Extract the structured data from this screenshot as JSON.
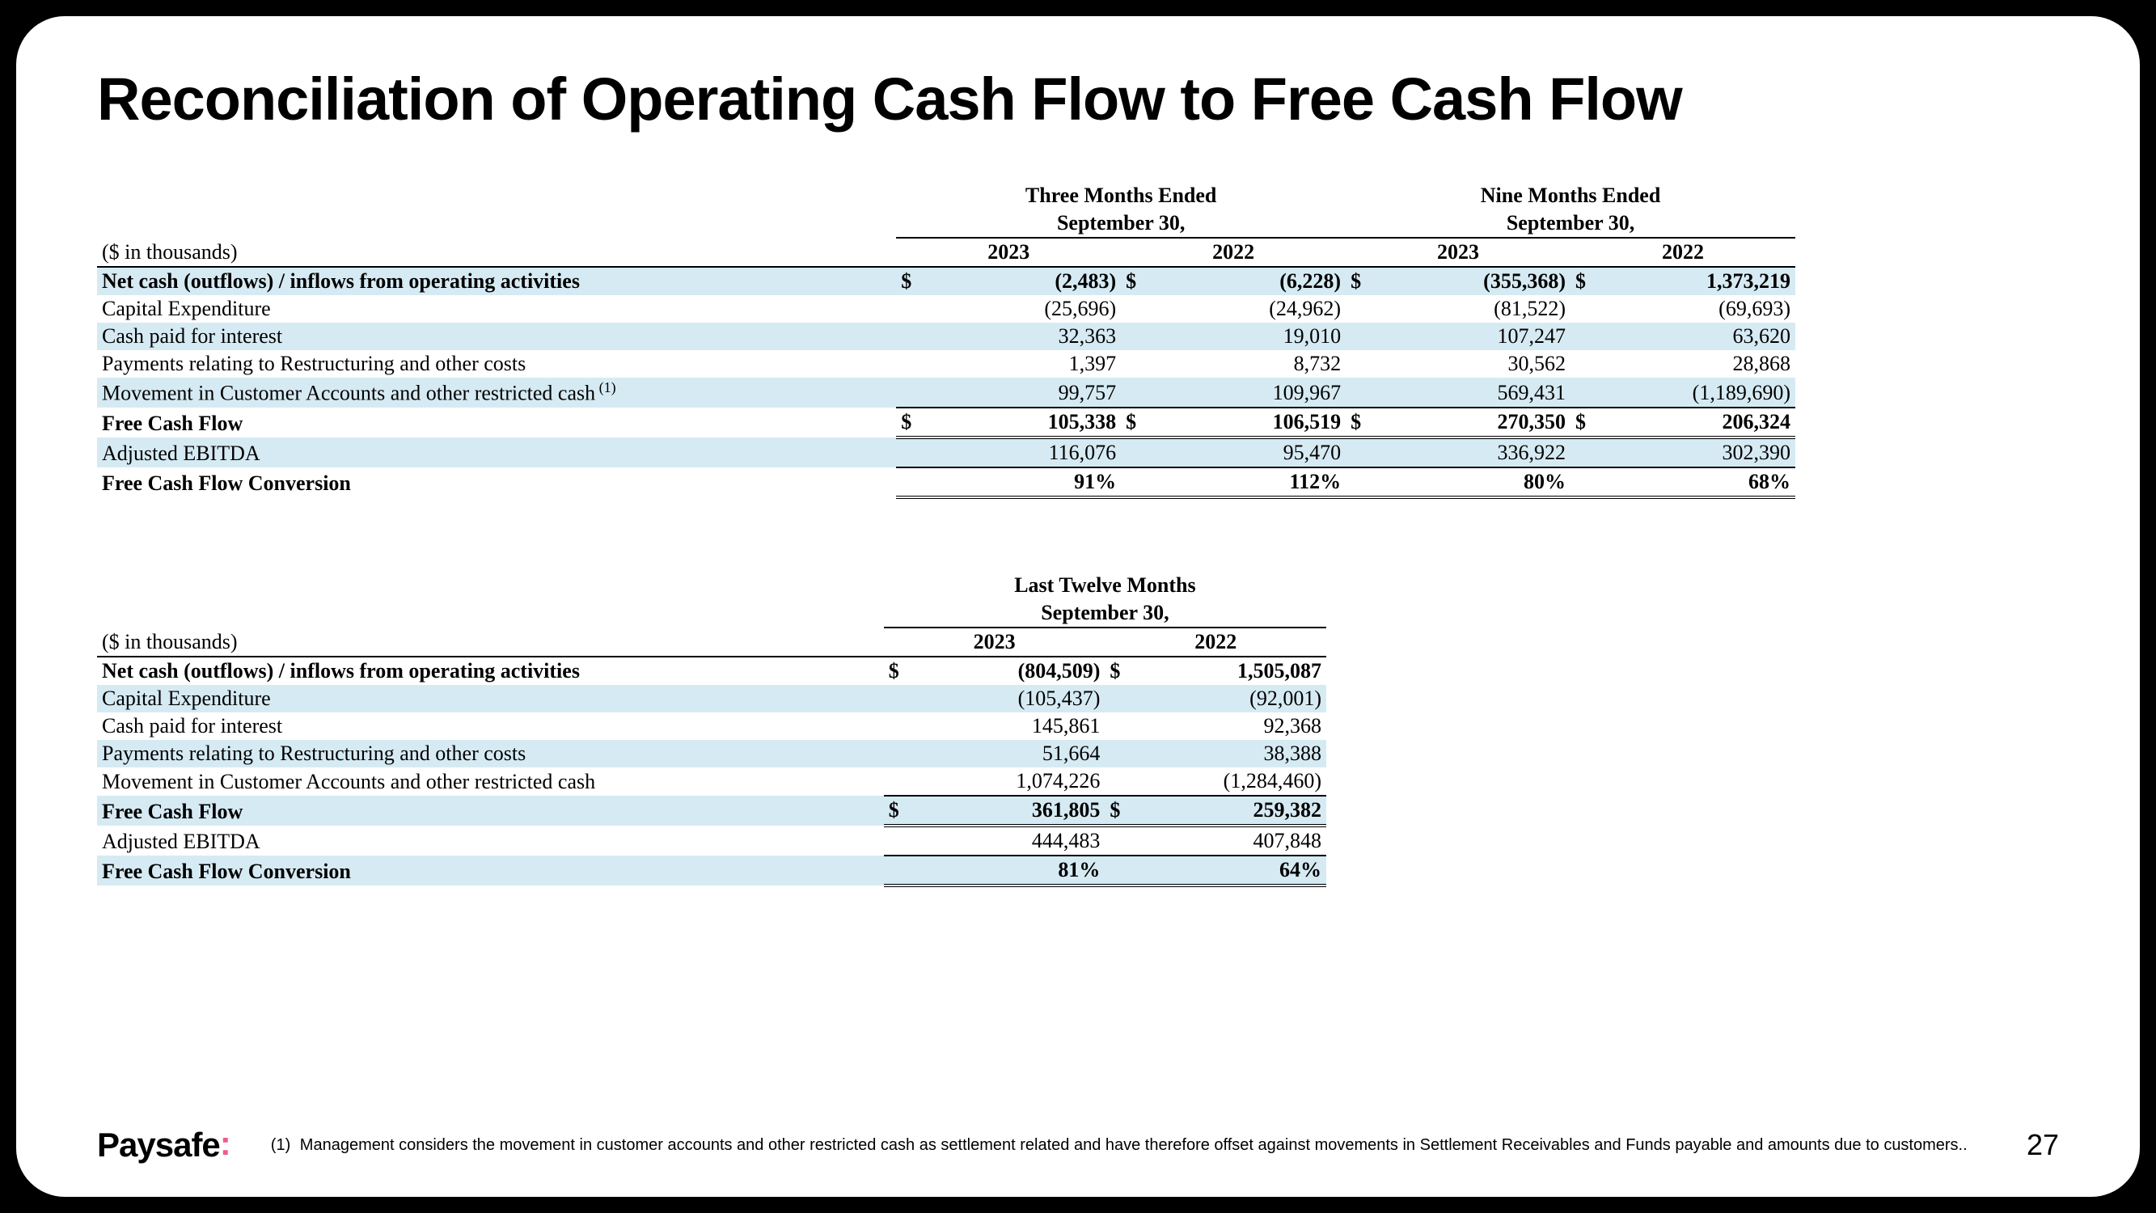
{
  "title": "Reconciliation of Operating Cash Flow to Free Cash Flow",
  "logo_text": "Paysafe",
  "page_number": "27",
  "footnote_number": "(1)",
  "footnote_text": "Management considers the movement in customer accounts and other restricted cash as settlement related and have therefore offset against movements in Settlement Receivables and Funds payable and amounts due to customers..",
  "table1": {
    "period1_title": "Three Months Ended",
    "period2_title": "Nine Months Ended",
    "sub_title": "September 30,",
    "unit_label": "($ in thousands)",
    "years": [
      "2023",
      "2022",
      "2023",
      "2022"
    ],
    "currency": "$",
    "rows": [
      {
        "label": "Net cash (outflows) / inflows from operating activities",
        "bold": true,
        "shade": true,
        "sym": true,
        "vals": [
          "(2,483)",
          "(6,228)",
          "(355,368)",
          "1,373,219"
        ]
      },
      {
        "label": "Capital Expenditure",
        "vals": [
          "(25,696)",
          "(24,962)",
          "(81,522)",
          "(69,693)"
        ]
      },
      {
        "label": "Cash paid for interest",
        "shade": true,
        "vals": [
          "32,363",
          "19,010",
          "107,247",
          "63,620"
        ]
      },
      {
        "label": "Payments relating to Restructuring and other costs",
        "vals": [
          "1,397",
          "8,732",
          "30,562",
          "28,868"
        ]
      },
      {
        "label": "Movement in Customer Accounts and other restricted cash",
        "sup": "(1)",
        "shade": true,
        "bb": true,
        "vals": [
          "99,757",
          "109,967",
          "569,431",
          "(1,189,690)"
        ]
      },
      {
        "label": "Free Cash Flow",
        "bold": true,
        "sym": true,
        "dbl": true,
        "vals": [
          "105,338",
          "106,519",
          "270,350",
          "206,324"
        ]
      },
      {
        "label": "Adjusted EBITDA",
        "shade": true,
        "bb": true,
        "vals": [
          "116,076",
          "95,470",
          "336,922",
          "302,390"
        ]
      },
      {
        "label": "Free Cash Flow Conversion",
        "bold": true,
        "dbl": true,
        "vals": [
          "91%",
          "112%",
          "80%",
          "68%"
        ]
      }
    ]
  },
  "table2": {
    "period_title": "Last Twelve Months",
    "sub_title": "September 30,",
    "unit_label": "($ in thousands)",
    "years": [
      "2023",
      "2022"
    ],
    "currency": "$",
    "rows": [
      {
        "label": "Net cash (outflows) / inflows from operating activities",
        "bold": true,
        "sym": true,
        "vals": [
          "(804,509)",
          "1,505,087"
        ]
      },
      {
        "label": "Capital Expenditure",
        "shade": true,
        "vals": [
          "(105,437)",
          "(92,001)"
        ]
      },
      {
        "label": "Cash paid for interest",
        "vals": [
          "145,861",
          "92,368"
        ]
      },
      {
        "label": "Payments relating to Restructuring and other costs",
        "shade": true,
        "vals": [
          "51,664",
          "38,388"
        ]
      },
      {
        "label": "Movement in Customer Accounts and other restricted cash",
        "bb": true,
        "vals": [
          "1,074,226",
          "(1,284,460)"
        ]
      },
      {
        "label": "Free Cash Flow",
        "bold": true,
        "shade": true,
        "sym": true,
        "dbl": true,
        "vals": [
          "361,805",
          "259,382"
        ]
      },
      {
        "label": "Adjusted EBITDA",
        "bb": true,
        "vals": [
          "444,483",
          "407,848"
        ]
      },
      {
        "label": "Free Cash Flow Conversion",
        "bold": true,
        "shade": true,
        "dbl": true,
        "vals": [
          "81%",
          "64%"
        ]
      }
    ]
  }
}
